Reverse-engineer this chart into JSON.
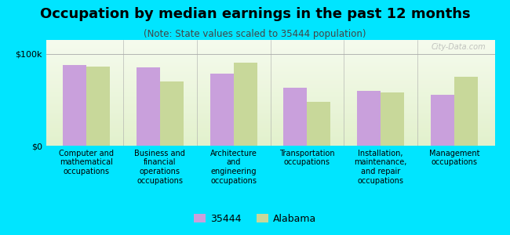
{
  "title": "Occupation by median earnings in the past 12 months",
  "subtitle": "(Note: State values scaled to 35444 population)",
  "categories": [
    "Computer and\nmathematical\noccupations",
    "Business and\nfinancial\noperations\noccupations",
    "Architecture\nand\nengineering\noccupations",
    "Transportation\noccupations",
    "Installation,\nmaintenance,\nand repair\noccupations",
    "Management\noccupations"
  ],
  "values_35444": [
    88000,
    85000,
    78000,
    63000,
    60000,
    55000
  ],
  "values_alabama": [
    86000,
    70000,
    90000,
    48000,
    58000,
    75000
  ],
  "bar_color_35444": "#c9a0dc",
  "bar_color_alabama": "#c8d89a",
  "background_color": "#00e5ff",
  "ytick_label_100k": "$100k",
  "ytick_label_0": "$0",
  "ylim": [
    0,
    115000
  ],
  "legend_label_35444": "35444",
  "legend_label_alabama": "Alabama",
  "watermark": "City-Data.com",
  "title_fontsize": 13,
  "subtitle_fontsize": 8.5,
  "tick_fontsize": 8,
  "legend_fontsize": 9,
  "xticklabel_fontsize": 7
}
